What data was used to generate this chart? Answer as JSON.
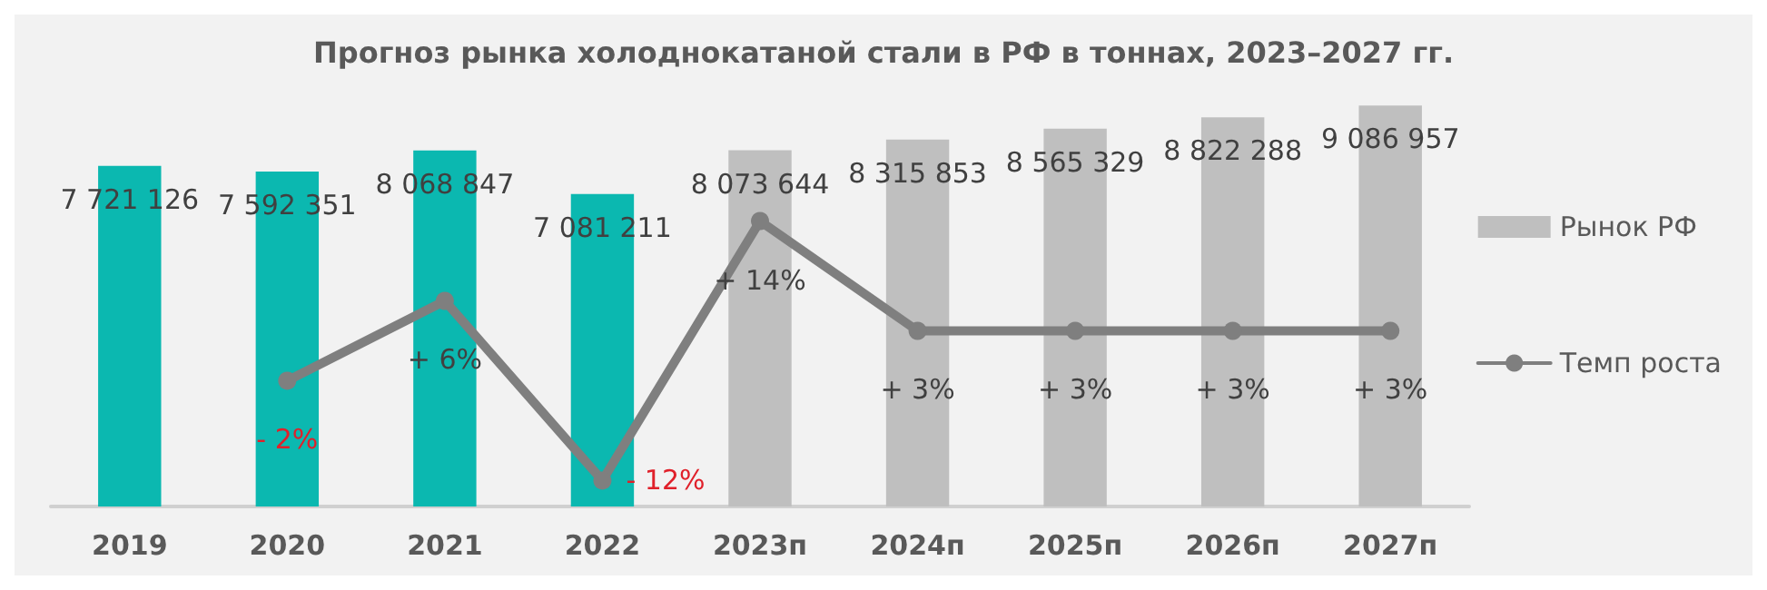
{
  "chart_data": {
    "type": "bar",
    "title": "Прогноз рынка холоднокатаной стали в РФ в тоннах, 2023–2027 гг.",
    "categories": [
      "2019",
      "2020",
      "2021",
      "2022",
      "2023п",
      "2024п",
      "2025п",
      "2026п",
      "2027п"
    ],
    "series": [
      {
        "name": "Рынок РФ",
        "color": "#bfbfbf",
        "colors": [
          "#0bb8b0",
          "#0bb8b0",
          "#0bb8b0",
          "#0bb8b0",
          "#bfbfbf",
          "#bfbfbf",
          "#bfbfbf",
          "#bfbfbf",
          "#bfbfbf"
        ],
        "values": [
          7721126,
          7592351,
          8068847,
          7081211,
          8073644,
          8315853,
          8565329,
          8822288,
          9086957
        ],
        "value_labels": [
          "7 721 126",
          "7 592 351",
          "8 068 847",
          "7 081 211",
          "8 073 644",
          "8 315 853",
          "8 565 329",
          "8 822 288",
          "9 086 957"
        ]
      },
      {
        "name": "Темп роста",
        "type": "line",
        "axis": "y2",
        "color": "#7f7f7f",
        "values": [
          null,
          -2,
          6,
          -12,
          14,
          3,
          3,
          3,
          3
        ],
        "value_labels": [
          null,
          "- 2%",
          "+ 6%",
          "- 12%",
          "+ 14%",
          "+ 3%",
          "+ 3%",
          "+ 3%",
          "+ 3%"
        ]
      }
    ],
    "legend": "right",
    "marker": "circle",
    "line_style": "solid",
    "grid": false,
    "tick_labels": "x"
  }
}
